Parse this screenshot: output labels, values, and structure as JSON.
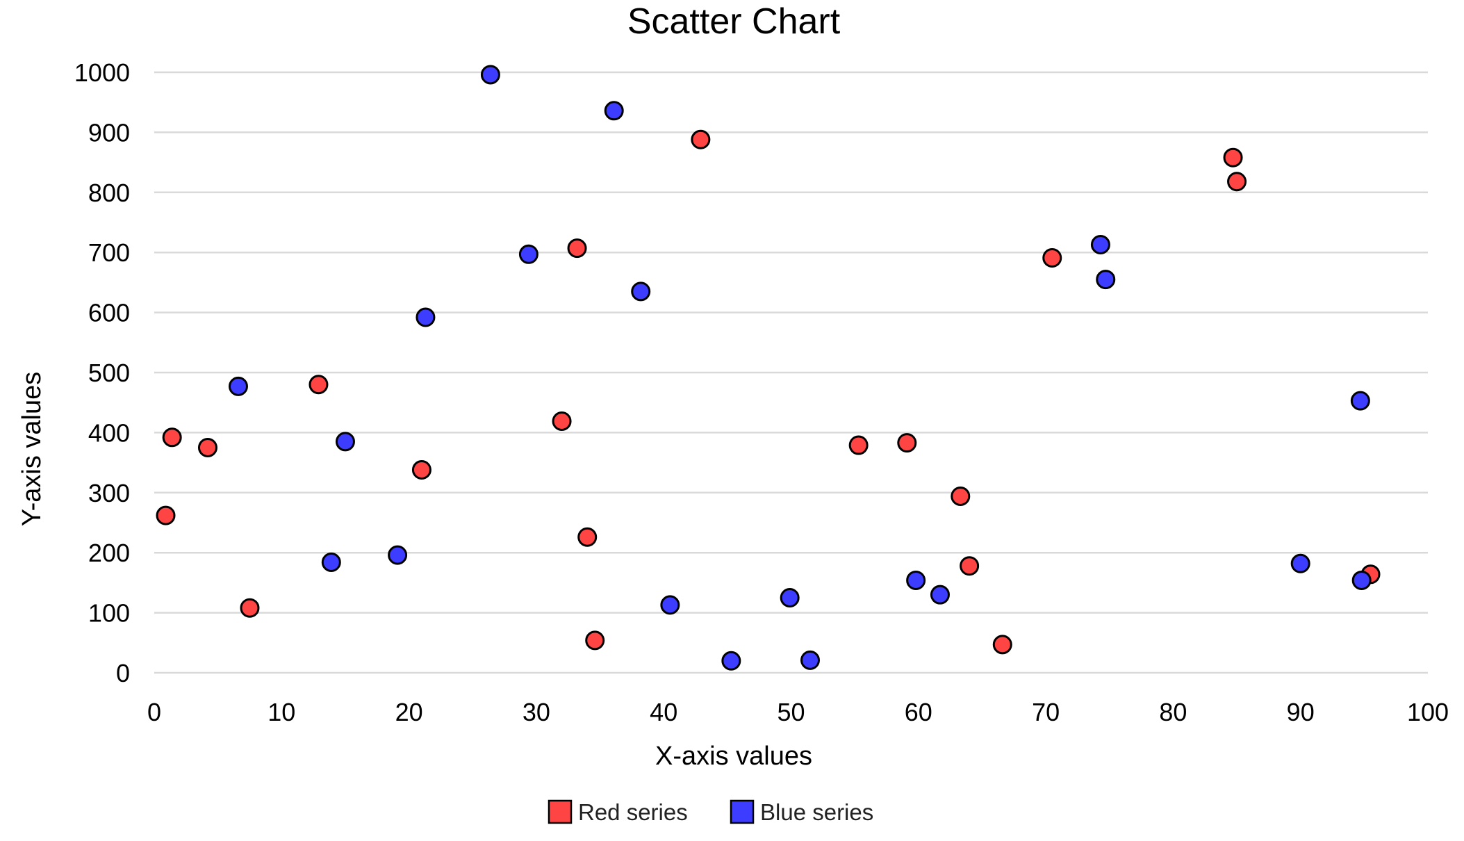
{
  "chart_data": {
    "type": "scatter",
    "title": "Scatter Chart",
    "xlabel": "X-axis values",
    "ylabel": "Y-axis values",
    "xlim": [
      0,
      100
    ],
    "ylim": [
      0,
      1000
    ],
    "x_ticks": [
      0,
      10,
      20,
      30,
      40,
      50,
      60,
      70,
      80,
      90,
      100
    ],
    "y_ticks": [
      0,
      100,
      200,
      300,
      400,
      500,
      600,
      700,
      800,
      900,
      1000
    ],
    "grid": "horizontal",
    "legend_position": "bottom",
    "series": [
      {
        "name": "Red series",
        "color": "#ff4444",
        "points": [
          {
            "x": 0.9,
            "y": 262
          },
          {
            "x": 1.4,
            "y": 392
          },
          {
            "x": 4.2,
            "y": 375
          },
          {
            "x": 7.5,
            "y": 108
          },
          {
            "x": 12.9,
            "y": 480
          },
          {
            "x": 21.0,
            "y": 338
          },
          {
            "x": 32.0,
            "y": 419
          },
          {
            "x": 33.2,
            "y": 707
          },
          {
            "x": 34.0,
            "y": 226
          },
          {
            "x": 34.6,
            "y": 54
          },
          {
            "x": 42.9,
            "y": 888
          },
          {
            "x": 55.3,
            "y": 379
          },
          {
            "x": 59.1,
            "y": 383
          },
          {
            "x": 63.3,
            "y": 294
          },
          {
            "x": 64.0,
            "y": 178
          },
          {
            "x": 66.6,
            "y": 47
          },
          {
            "x": 70.5,
            "y": 691
          },
          {
            "x": 84.7,
            "y": 858
          },
          {
            "x": 85.0,
            "y": 818
          },
          {
            "x": 95.5,
            "y": 164
          }
        ]
      },
      {
        "name": "Blue series",
        "color": "#3d3dff",
        "points": [
          {
            "x": 6.6,
            "y": 477
          },
          {
            "x": 13.9,
            "y": 184
          },
          {
            "x": 15.0,
            "y": 385
          },
          {
            "x": 19.1,
            "y": 196
          },
          {
            "x": 21.3,
            "y": 592
          },
          {
            "x": 26.4,
            "y": 996
          },
          {
            "x": 29.4,
            "y": 697
          },
          {
            "x": 36.1,
            "y": 936
          },
          {
            "x": 38.2,
            "y": 635
          },
          {
            "x": 40.5,
            "y": 113
          },
          {
            "x": 45.3,
            "y": 20
          },
          {
            "x": 49.9,
            "y": 125
          },
          {
            "x": 51.5,
            "y": 21
          },
          {
            "x": 59.8,
            "y": 154
          },
          {
            "x": 61.7,
            "y": 130
          },
          {
            "x": 74.3,
            "y": 713
          },
          {
            "x": 74.7,
            "y": 655
          },
          {
            "x": 90.0,
            "y": 182
          },
          {
            "x": 94.7,
            "y": 453
          },
          {
            "x": 94.8,
            "y": 154
          }
        ]
      }
    ]
  }
}
